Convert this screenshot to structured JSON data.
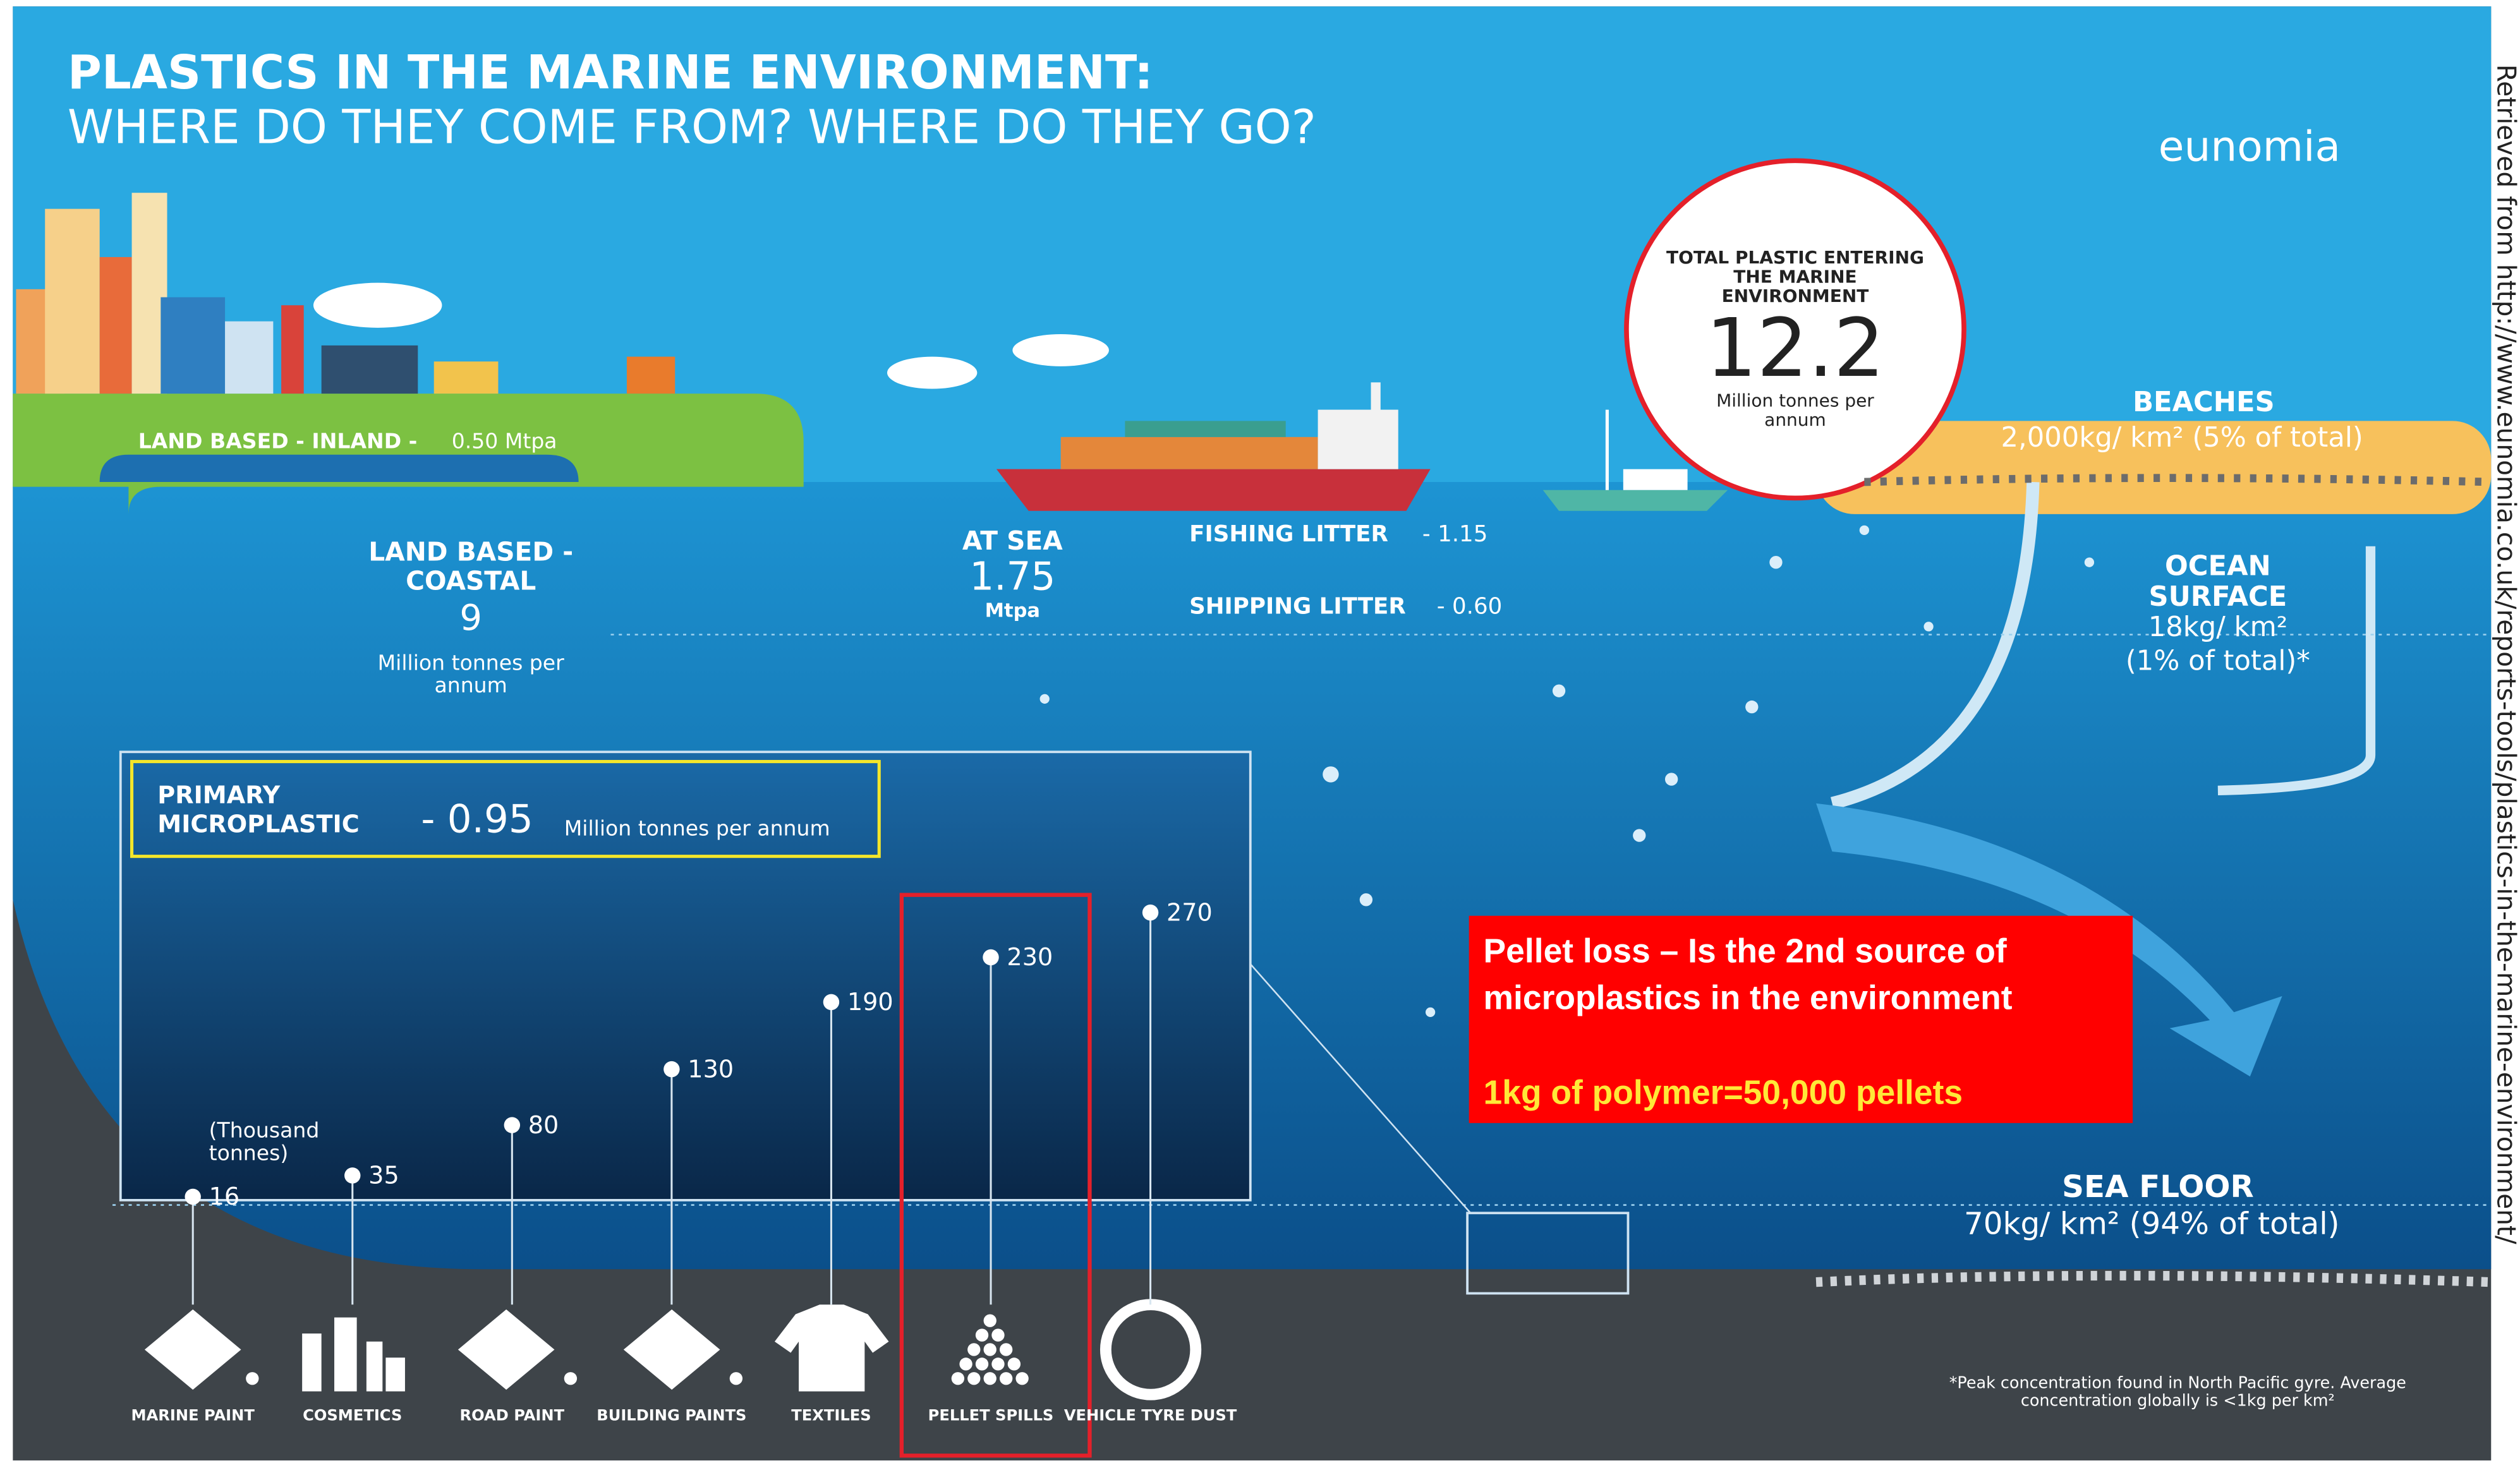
{
  "header": {
    "title_line_1": "PLASTICS IN THE MARINE ENVIRONMENT:",
    "title_line_2": "WHERE DO THEY COME FROM? WHERE DO THEY GO?",
    "logo": "eunomia"
  },
  "source_note": "Retrieved from http://www.eunomia.co.uk/reports-tools/plastics-in-the-marine-environment/",
  "land_inland": {
    "label": "LAND BASED - INLAND -",
    "value": "0.50  Mtpa"
  },
  "land_coastal": {
    "label": "LAND BASED - COASTAL",
    "value": "9",
    "unit": "Million tonnes per annum"
  },
  "at_sea": {
    "label": "AT SEA",
    "value": "1.75",
    "unit": "Mtpa",
    "fishing": {
      "label": "FISHING LITTER",
      "value": "- 1.15"
    },
    "shipping": {
      "label": "SHIPPING LITTER",
      "value": "- 0.60"
    }
  },
  "total": {
    "label": "TOTAL PLASTIC ENTERING THE MARINE ENVIRONMENT",
    "value": "12.2",
    "unit": "Million tonnes per annum"
  },
  "beaches": {
    "label": "BEACHES",
    "value": "2,000kg/ km² (5% of total)"
  },
  "ocean_surface": {
    "label": "OCEAN SURFACE",
    "value": "18kg/ km²",
    "share": "(1% of total)*"
  },
  "sea_floor": {
    "label": "SEA FLOOR",
    "value": "70kg/ km² (94% of total)"
  },
  "callout": {
    "text": "Pellet loss – Is the 2nd source of microplastics in the environment",
    "note": "1kg of polymer=50,000 pellets"
  },
  "footnote": "*Peak concentration found in North Pacific gyre. Average concentration globally is <1kg per km²",
  "chart_data": {
    "type": "lollipop",
    "title": "PRIMARY MICROPLASTIC",
    "total": "- 0.95",
    "total_unit": "Million tonnes per annum",
    "unit_label": "(Thousand tonnes)",
    "categories": [
      "MARINE PAINT",
      "COSMETICS",
      "ROAD PAINT",
      "BUILDING PAINTS",
      "TEXTILES",
      "PELLET SPILLS",
      "VEHICLE TYRE DUST"
    ],
    "values": [
      16,
      35,
      80,
      130,
      190,
      230,
      270
    ],
    "color": "#ffffff"
  }
}
